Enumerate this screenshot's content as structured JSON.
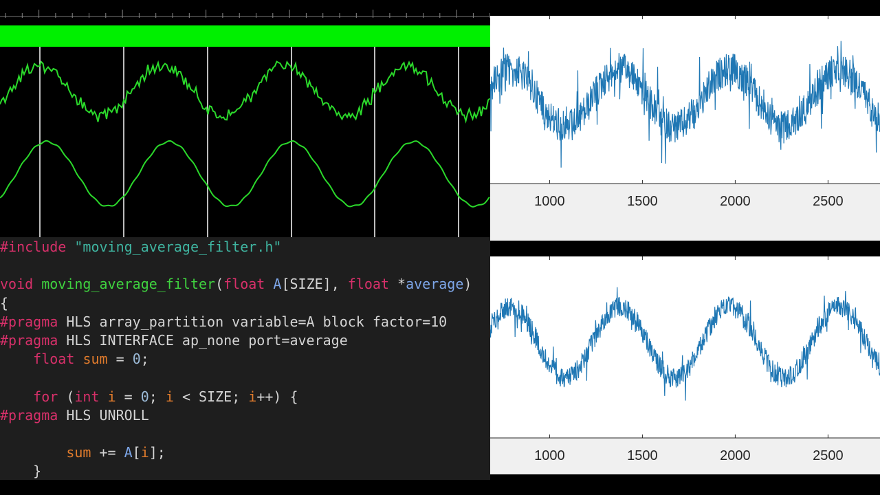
{
  "scope": {
    "trace_color": "#2bd92b",
    "bar_color": "#00f000",
    "gridline_color": "#bdbdbd"
  },
  "code": {
    "lines": [
      [
        {
          "t": "#include",
          "c": "kw"
        },
        {
          "t": " ",
          "c": "pl"
        },
        {
          "t": "\"moving_average_filter.h\"",
          "c": "str"
        }
      ],
      [],
      [
        {
          "t": "void",
          "c": "kw"
        },
        {
          "t": " ",
          "c": "pl"
        },
        {
          "t": "moving_average_filter",
          "c": "fn"
        },
        {
          "t": "(",
          "c": "pl"
        },
        {
          "t": "float",
          "c": "ty"
        },
        {
          "t": " ",
          "c": "pl"
        },
        {
          "t": "A",
          "c": "prm"
        },
        {
          "t": "[SIZE], ",
          "c": "pl"
        },
        {
          "t": "float",
          "c": "ty"
        },
        {
          "t": " *",
          "c": "pl"
        },
        {
          "t": "average",
          "c": "prm"
        },
        {
          "t": ")",
          "c": "pl"
        }
      ],
      [
        {
          "t": "{",
          "c": "pl"
        }
      ],
      [
        {
          "t": "#pragma",
          "c": "kw"
        },
        {
          "t": " HLS array_partition variable=A block factor=10",
          "c": "pl"
        }
      ],
      [
        {
          "t": "#pragma",
          "c": "kw"
        },
        {
          "t": " HLS INTERFACE ap_none port=average",
          "c": "pl"
        }
      ],
      [
        {
          "t": "    ",
          "c": "pl"
        },
        {
          "t": "float",
          "c": "ty"
        },
        {
          "t": " ",
          "c": "pl"
        },
        {
          "t": "sum",
          "c": "var"
        },
        {
          "t": " = ",
          "c": "pl"
        },
        {
          "t": "0",
          "c": "num"
        },
        {
          "t": ";",
          "c": "pl"
        }
      ],
      [],
      [
        {
          "t": "    ",
          "c": "pl"
        },
        {
          "t": "for",
          "c": "kw"
        },
        {
          "t": " (",
          "c": "pl"
        },
        {
          "t": "int",
          "c": "ty"
        },
        {
          "t": " ",
          "c": "pl"
        },
        {
          "t": "i",
          "c": "var"
        },
        {
          "t": " = ",
          "c": "pl"
        },
        {
          "t": "0",
          "c": "num"
        },
        {
          "t": "; ",
          "c": "pl"
        },
        {
          "t": "i",
          "c": "var"
        },
        {
          "t": " < SIZE; ",
          "c": "pl"
        },
        {
          "t": "i",
          "c": "var"
        },
        {
          "t": "++) {",
          "c": "pl"
        }
      ],
      [
        {
          "t": "#pragma",
          "c": "kw"
        },
        {
          "t": " HLS UNROLL",
          "c": "pl"
        }
      ],
      [],
      [
        {
          "t": "        ",
          "c": "pl"
        },
        {
          "t": "sum",
          "c": "var"
        },
        {
          "t": " += ",
          "c": "pl"
        },
        {
          "t": "A",
          "c": "prm"
        },
        {
          "t": "[",
          "c": "pl"
        },
        {
          "t": "i",
          "c": "var"
        },
        {
          "t": "];",
          "c": "pl"
        }
      ],
      [
        {
          "t": "    }",
          "c": "pl"
        }
      ]
    ]
  },
  "chart_data": [
    {
      "type": "line",
      "x_ticks": [
        1000,
        1500,
        2000,
        2500
      ],
      "xlim": [
        680,
        2780
      ],
      "series_color": "#1f77b4",
      "noise": "high",
      "period": 590,
      "phase_peak": 790
    },
    {
      "type": "line",
      "x_ticks": [
        1000,
        1500,
        2000,
        2500
      ],
      "xlim": [
        680,
        2780
      ],
      "series_color": "#1f77b4",
      "noise": "medium",
      "period": 590,
      "phase_peak": 790
    }
  ]
}
